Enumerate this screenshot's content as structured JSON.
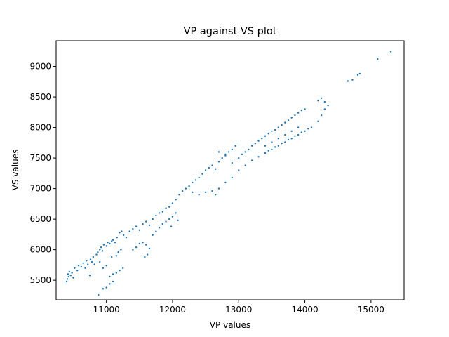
{
  "chart_data": {
    "type": "scatter",
    "title": "VP against VS plot",
    "xlabel": "VP values",
    "ylabel": "VS values",
    "xlim": [
      10240,
      15500
    ],
    "ylim": [
      5180,
      9420
    ],
    "xticks": [
      11000,
      12000,
      13000,
      14000,
      15000
    ],
    "yticks": [
      5500,
      6000,
      6500,
      7000,
      7500,
      8000,
      8500,
      9000
    ],
    "grid": false,
    "legend": "none",
    "series": [
      {
        "color": "#1f77b4",
        "points": [
          [
            10400,
            5480
          ],
          [
            10410,
            5520
          ],
          [
            10420,
            5600
          ],
          [
            10430,
            5560
          ],
          [
            10440,
            5640
          ],
          [
            10460,
            5580
          ],
          [
            10480,
            5620
          ],
          [
            10500,
            5540
          ],
          [
            10520,
            5700
          ],
          [
            10560,
            5660
          ],
          [
            10580,
            5740
          ],
          [
            10620,
            5720
          ],
          [
            10650,
            5780
          ],
          [
            10680,
            5700
          ],
          [
            10700,
            5820
          ],
          [
            10720,
            5760
          ],
          [
            10760,
            5840
          ],
          [
            10780,
            5800
          ],
          [
            10800,
            5880
          ],
          [
            10820,
            5760
          ],
          [
            10850,
            5920
          ],
          [
            10870,
            5960
          ],
          [
            10900,
            6000
          ],
          [
            10920,
            6040
          ],
          [
            10940,
            5980
          ],
          [
            10960,
            6080
          ],
          [
            11000,
            6060
          ],
          [
            11020,
            6120
          ],
          [
            11050,
            6100
          ],
          [
            11080,
            6140
          ],
          [
            11100,
            6160
          ],
          [
            11130,
            6120
          ],
          [
            11160,
            6200
          ],
          [
            11200,
            6280
          ],
          [
            11230,
            6300
          ],
          [
            11260,
            6240
          ],
          [
            10900,
            5800
          ],
          [
            10950,
            5700
          ],
          [
            11000,
            5740
          ],
          [
            11050,
            5560
          ],
          [
            11100,
            5600
          ],
          [
            11150,
            5620
          ],
          [
            11200,
            5660
          ],
          [
            11250,
            5700
          ],
          [
            10950,
            5360
          ],
          [
            11000,
            5380
          ],
          [
            11050,
            5440
          ],
          [
            11100,
            5480
          ],
          [
            10880,
            5260
          ],
          [
            10750,
            5580
          ],
          [
            11150,
            5900
          ],
          [
            11180,
            5960
          ],
          [
            11220,
            6000
          ],
          [
            11080,
            5880
          ],
          [
            11300,
            6200
          ],
          [
            11350,
            6300
          ],
          [
            11400,
            6340
          ],
          [
            11450,
            6380
          ],
          [
            11500,
            6320
          ],
          [
            11550,
            6420
          ],
          [
            11600,
            6460
          ],
          [
            11650,
            6400
          ],
          [
            11700,
            6500
          ],
          [
            11750,
            6560
          ],
          [
            11800,
            6600
          ],
          [
            11850,
            6620
          ],
          [
            11900,
            6680
          ],
          [
            11950,
            6700
          ],
          [
            12000,
            6760
          ],
          [
            12050,
            6820
          ],
          [
            11400,
            6000
          ],
          [
            11450,
            6040
          ],
          [
            11500,
            6100
          ],
          [
            11550,
            6120
          ],
          [
            11600,
            6080
          ],
          [
            11650,
            6020
          ],
          [
            11620,
            5920
          ],
          [
            11580,
            5880
          ],
          [
            11700,
            6240
          ],
          [
            11750,
            6300
          ],
          [
            11800,
            6360
          ],
          [
            11850,
            6420
          ],
          [
            11900,
            6460
          ],
          [
            11950,
            6500
          ],
          [
            12000,
            6540
          ],
          [
            12050,
            6600
          ],
          [
            11980,
            6380
          ],
          [
            12080,
            6480
          ],
          [
            12100,
            6900
          ],
          [
            12150,
            6960
          ],
          [
            12200,
            7000
          ],
          [
            12250,
            7040
          ],
          [
            12300,
            7100
          ],
          [
            12350,
            7140
          ],
          [
            12400,
            7180
          ],
          [
            12450,
            7240
          ],
          [
            12500,
            7300
          ],
          [
            12550,
            7340
          ],
          [
            12600,
            7380
          ],
          [
            12650,
            7320
          ],
          [
            12700,
            7440
          ],
          [
            12750,
            7500
          ],
          [
            12800,
            7560
          ],
          [
            12850,
            7600
          ],
          [
            12900,
            7640
          ],
          [
            12950,
            7700
          ],
          [
            12300,
            6940
          ],
          [
            12400,
            6900
          ],
          [
            12500,
            6940
          ],
          [
            12600,
            6960
          ],
          [
            12700,
            7000
          ],
          [
            12800,
            7100
          ],
          [
            12900,
            7180
          ],
          [
            12650,
            6900
          ],
          [
            12700,
            7600
          ],
          [
            12800,
            7540
          ],
          [
            12900,
            7420
          ],
          [
            13000,
            7500
          ],
          [
            13050,
            7560
          ],
          [
            13100,
            7600
          ],
          [
            13150,
            7640
          ],
          [
            13200,
            7700
          ],
          [
            13250,
            7740
          ],
          [
            13300,
            7780
          ],
          [
            13350,
            7820
          ],
          [
            13400,
            7860
          ],
          [
            13450,
            7900
          ],
          [
            13500,
            7940
          ],
          [
            13550,
            7960
          ],
          [
            13600,
            8000
          ],
          [
            13650,
            8040
          ],
          [
            13700,
            8080
          ],
          [
            13750,
            8120
          ],
          [
            13800,
            8160
          ],
          [
            13850,
            8200
          ],
          [
            13900,
            8240
          ],
          [
            13950,
            8280
          ],
          [
            14000,
            8300
          ],
          [
            13000,
            7300
          ],
          [
            13100,
            7380
          ],
          [
            13200,
            7460
          ],
          [
            13300,
            7520
          ],
          [
            13400,
            7580
          ],
          [
            13500,
            7640
          ],
          [
            13600,
            7700
          ],
          [
            13700,
            7760
          ],
          [
            13800,
            7820
          ],
          [
            13900,
            7880
          ],
          [
            14000,
            7940
          ],
          [
            14100,
            8000
          ],
          [
            14200,
            8100
          ],
          [
            14250,
            8200
          ],
          [
            14300,
            8300
          ],
          [
            14350,
            8360
          ],
          [
            14200,
            8440
          ],
          [
            14250,
            8480
          ],
          [
            14300,
            8420
          ],
          [
            13400,
            7700
          ],
          [
            13500,
            7760
          ],
          [
            13600,
            7820
          ],
          [
            13700,
            7880
          ],
          [
            13800,
            7940
          ],
          [
            13900,
            8000
          ],
          [
            13450,
            7620
          ],
          [
            13550,
            7680
          ],
          [
            13650,
            7740
          ],
          [
            13750,
            7800
          ],
          [
            13850,
            7860
          ],
          [
            13950,
            7920
          ],
          [
            14050,
            7980
          ],
          [
            14650,
            8760
          ],
          [
            14720,
            8780
          ],
          [
            14800,
            8860
          ],
          [
            14830,
            8880
          ],
          [
            15100,
            9120
          ],
          [
            15300,
            9240
          ]
        ]
      }
    ]
  }
}
